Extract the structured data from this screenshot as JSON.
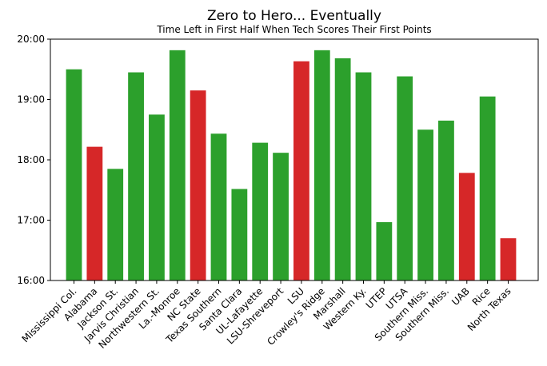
{
  "chart_data": {
    "type": "bar",
    "title": "Zero to Hero... Eventually",
    "subtitle": "Time Left in First Half When Tech Scores Their First Points",
    "xlabel": "",
    "ylabel": "",
    "ylim": [
      "16:00",
      "20:00"
    ],
    "yticks": [
      "16:00",
      "17:00",
      "18:00",
      "19:00",
      "20:00"
    ],
    "grid": false,
    "categories": [
      "Mississippi Col.",
      "Alabama",
      "Jackson St.",
      "Jarvis Christian",
      "Northwestern St.",
      "La.-Monroe",
      "NC State",
      "Texas Southern",
      "Santa Clara",
      "UL-Lafayette",
      "LSU-Shreveport",
      "LSU",
      "Crowley's Ridge",
      "Marshall",
      "Western Ky.",
      "UTEP",
      "UTSA",
      "Southern Miss.",
      "Southern Miss.",
      "UAB",
      "Rice",
      "North Texas"
    ],
    "values": [
      "19:30",
      "18:13",
      "17:51",
      "19:27",
      "18:45",
      "19:49",
      "19:09",
      "18:26",
      "17:31",
      "18:17",
      "18:07",
      "19:38",
      "19:49",
      "19:41",
      "19:27",
      "16:58",
      "19:23",
      "18:30",
      "18:39",
      "17:47",
      "19:03",
      "16:42"
    ],
    "bar_colors": [
      "#2ca02c",
      "#d62728",
      "#2ca02c",
      "#2ca02c",
      "#2ca02c",
      "#2ca02c",
      "#d62728",
      "#2ca02c",
      "#2ca02c",
      "#2ca02c",
      "#2ca02c",
      "#d62728",
      "#2ca02c",
      "#2ca02c",
      "#2ca02c",
      "#2ca02c",
      "#2ca02c",
      "#2ca02c",
      "#2ca02c",
      "#d62728",
      "#2ca02c",
      "#d62728"
    ]
  }
}
